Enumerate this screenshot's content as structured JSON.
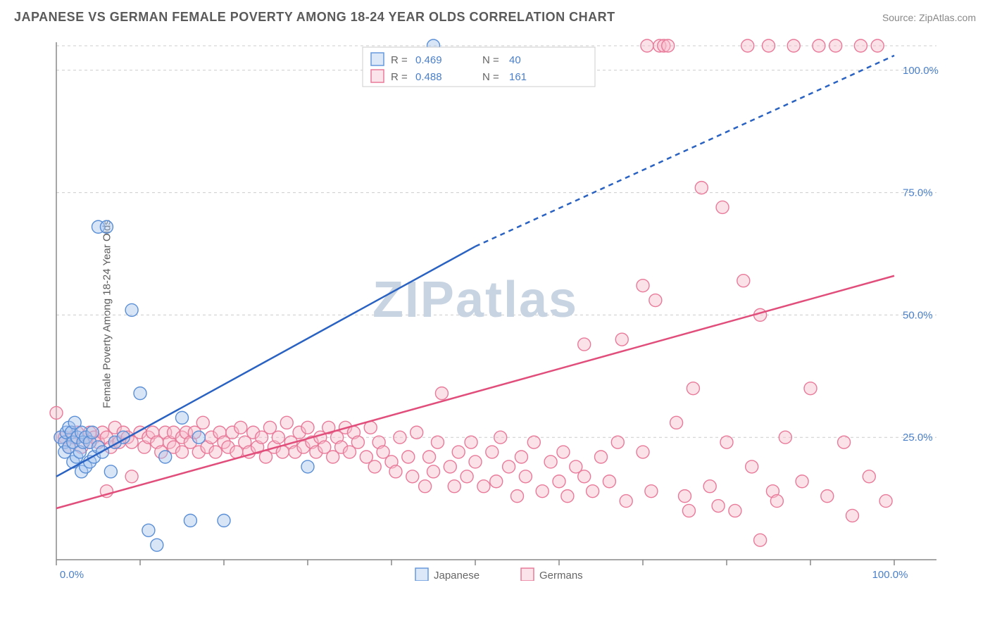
{
  "title": "JAPANESE VS GERMAN FEMALE POVERTY AMONG 18-24 YEAR OLDS CORRELATION CHART",
  "source": "Source: ZipAtlas.com",
  "y_axis_label": "Female Poverty Among 18-24 Year Olds",
  "watermark": "ZIPatlas",
  "chart": {
    "type": "scatter",
    "background_color": "#ffffff",
    "grid_color": "#cccccc",
    "axis_color": "#888888",
    "tick_label_color": "#4a7fc9",
    "xlim": [
      0,
      100
    ],
    "ylim": [
      0,
      105
    ],
    "x_ticks": [
      0,
      10,
      20,
      30,
      40,
      50,
      60,
      70,
      80,
      90,
      100
    ],
    "x_tick_labels": {
      "0": "0.0%",
      "100": "100.0%"
    },
    "y_ticks": [
      25,
      50,
      75,
      100
    ],
    "y_tick_labels": {
      "25": "25.0%",
      "50": "50.0%",
      "75": "75.0%",
      "100": "100.0%"
    },
    "marker_radius": 9,
    "marker_opacity": 0.45,
    "marker_stroke_width": 1.4
  },
  "series": {
    "japanese": {
      "label": "Japanese",
      "color_fill": "#a8c6ee",
      "color_stroke": "#5a8fd6",
      "trend": {
        "x1": 0,
        "y1": 17,
        "x2": 50,
        "y2": 64,
        "dash_x2": 100,
        "dash_y2": 103,
        "stroke": "#2a62c2",
        "width": 2.5
      },
      "R": "0.469",
      "N": "40",
      "points": [
        [
          0.5,
          25
        ],
        [
          1,
          24
        ],
        [
          1,
          22
        ],
        [
          1.2,
          26
        ],
        [
          1.5,
          23
        ],
        [
          1.5,
          27
        ],
        [
          1.8,
          26
        ],
        [
          2,
          24
        ],
        [
          2,
          20
        ],
        [
          2.2,
          28
        ],
        [
          2.4,
          21
        ],
        [
          2.5,
          25
        ],
        [
          2.8,
          22
        ],
        [
          3,
          26
        ],
        [
          3,
          18
        ],
        [
          3.2,
          24
        ],
        [
          3.5,
          25
        ],
        [
          3.5,
          19
        ],
        [
          4,
          24
        ],
        [
          4,
          20
        ],
        [
          4.3,
          26
        ],
        [
          4.5,
          21
        ],
        [
          5,
          23
        ],
        [
          5,
          68
        ],
        [
          5.5,
          22
        ],
        [
          6,
          68
        ],
        [
          6.5,
          18
        ],
        [
          7,
          24
        ],
        [
          8,
          25
        ],
        [
          9,
          51
        ],
        [
          10,
          34
        ],
        [
          11,
          6
        ],
        [
          12,
          3
        ],
        [
          13,
          21
        ],
        [
          15,
          29
        ],
        [
          16,
          8
        ],
        [
          17,
          25
        ],
        [
          20,
          8
        ],
        [
          30,
          19
        ],
        [
          45,
          105
        ]
      ]
    },
    "germans": {
      "label": "Germans",
      "color_fill": "#f6bdcb",
      "color_stroke": "#e87a9a",
      "trend": {
        "x1": 0,
        "y1": 10.5,
        "x2": 100,
        "y2": 58,
        "stroke": "#e14e7c",
        "width": 2.5
      },
      "R": "0.488",
      "N": "161",
      "points": [
        [
          0,
          30
        ],
        [
          0.5,
          25
        ],
        [
          1,
          25
        ],
        [
          1.5,
          23
        ],
        [
          2,
          25
        ],
        [
          2.5,
          26
        ],
        [
          3,
          23
        ],
        [
          3.5,
          25
        ],
        [
          4,
          24
        ],
        [
          4,
          26
        ],
        [
          4.5,
          25
        ],
        [
          5,
          24
        ],
        [
          5.5,
          26
        ],
        [
          6,
          25
        ],
        [
          6,
          14
        ],
        [
          6.5,
          23
        ],
        [
          7,
          24
        ],
        [
          7,
          27
        ],
        [
          7.5,
          24
        ],
        [
          8,
          26
        ],
        [
          8.5,
          25
        ],
        [
          9,
          24
        ],
        [
          9,
          17
        ],
        [
          10,
          26
        ],
        [
          10.5,
          23
        ],
        [
          11,
          25
        ],
        [
          11.5,
          26
        ],
        [
          12,
          24
        ],
        [
          12.5,
          22
        ],
        [
          13,
          26
        ],
        [
          13.5,
          24
        ],
        [
          14,
          26
        ],
        [
          14,
          23
        ],
        [
          15,
          25
        ],
        [
          15,
          22
        ],
        [
          15.5,
          26
        ],
        [
          16,
          24
        ],
        [
          16.5,
          26
        ],
        [
          17,
          22
        ],
        [
          17.5,
          28
        ],
        [
          18,
          23
        ],
        [
          18.5,
          25
        ],
        [
          19,
          22
        ],
        [
          19.5,
          26
        ],
        [
          20,
          24
        ],
        [
          20.5,
          23
        ],
        [
          21,
          26
        ],
        [
          21.5,
          22
        ],
        [
          22,
          27
        ],
        [
          22.5,
          24
        ],
        [
          23,
          22
        ],
        [
          23.5,
          26
        ],
        [
          24,
          23
        ],
        [
          24.5,
          25
        ],
        [
          25,
          21
        ],
        [
          25.5,
          27
        ],
        [
          26,
          23
        ],
        [
          26.5,
          25
        ],
        [
          27,
          22
        ],
        [
          27.5,
          28
        ],
        [
          28,
          24
        ],
        [
          28.5,
          22
        ],
        [
          29,
          26
        ],
        [
          29.5,
          23
        ],
        [
          30,
          27
        ],
        [
          30.5,
          24
        ],
        [
          31,
          22
        ],
        [
          31.5,
          25
        ],
        [
          32,
          23
        ],
        [
          32.5,
          27
        ],
        [
          33,
          21
        ],
        [
          33.5,
          25
        ],
        [
          34,
          23
        ],
        [
          34.5,
          27
        ],
        [
          35,
          22
        ],
        [
          35.5,
          26
        ],
        [
          36,
          24
        ],
        [
          37,
          21
        ],
        [
          37.5,
          27
        ],
        [
          38,
          19
        ],
        [
          38.5,
          24
        ],
        [
          39,
          22
        ],
        [
          40,
          20
        ],
        [
          40.5,
          18
        ],
        [
          41,
          25
        ],
        [
          42,
          21
        ],
        [
          42.5,
          17
        ],
        [
          43,
          26
        ],
        [
          44,
          15
        ],
        [
          44.5,
          21
        ],
        [
          45,
          18
        ],
        [
          45.5,
          24
        ],
        [
          46,
          34
        ],
        [
          47,
          19
        ],
        [
          47.5,
          15
        ],
        [
          48,
          22
        ],
        [
          49,
          17
        ],
        [
          49.5,
          24
        ],
        [
          50,
          20
        ],
        [
          51,
          15
        ],
        [
          52,
          22
        ],
        [
          52.5,
          16
        ],
        [
          53,
          25
        ],
        [
          54,
          19
        ],
        [
          55,
          13
        ],
        [
          55.5,
          21
        ],
        [
          56,
          17
        ],
        [
          57,
          24
        ],
        [
          58,
          14
        ],
        [
          59,
          20
        ],
        [
          60,
          16
        ],
        [
          60.5,
          22
        ],
        [
          61,
          13
        ],
        [
          62,
          19
        ],
        [
          63,
          17
        ],
        [
          63,
          44
        ],
        [
          64,
          14
        ],
        [
          65,
          21
        ],
        [
          66,
          16
        ],
        [
          67,
          24
        ],
        [
          67.5,
          45
        ],
        [
          68,
          12
        ],
        [
          70,
          22
        ],
        [
          70,
          56
        ],
        [
          70.5,
          105
        ],
        [
          71,
          14
        ],
        [
          71.5,
          53
        ],
        [
          72,
          105
        ],
        [
          72.5,
          105
        ],
        [
          73,
          105
        ],
        [
          74,
          28
        ],
        [
          75,
          13
        ],
        [
          75.5,
          10
        ],
        [
          76,
          35
        ],
        [
          77,
          76
        ],
        [
          78,
          15
        ],
        [
          79,
          11
        ],
        [
          79.5,
          72
        ],
        [
          80,
          24
        ],
        [
          81,
          10
        ],
        [
          82,
          57
        ],
        [
          82.5,
          105
        ],
        [
          83,
          19
        ],
        [
          84,
          50
        ],
        [
          85,
          105
        ],
        [
          85.5,
          14
        ],
        [
          86,
          12
        ],
        [
          87,
          25
        ],
        [
          88,
          105
        ],
        [
          89,
          16
        ],
        [
          90,
          35
        ],
        [
          91,
          105
        ],
        [
          92,
          13
        ],
        [
          93,
          105
        ],
        [
          94,
          24
        ],
        [
          95,
          9
        ],
        [
          96,
          105
        ],
        [
          97,
          17
        ],
        [
          84,
          4
        ],
        [
          98,
          105
        ],
        [
          99,
          12
        ]
      ]
    }
  },
  "stats_legend": {
    "R_label": "R =",
    "N_label": "N ="
  },
  "bottom_legend": {
    "items": [
      "japanese",
      "germans"
    ]
  }
}
